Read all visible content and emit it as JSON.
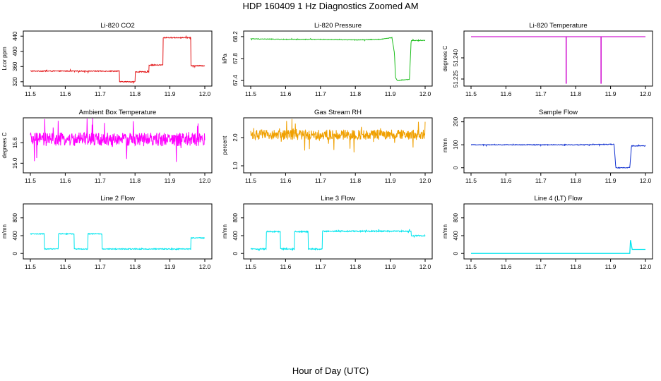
{
  "figure": {
    "title": "HDP  160409  1 Hz Diagnostics Zoomed AM",
    "xlabel": "Hour of Day (UTC)"
  },
  "chart_data": [
    {
      "type": "line",
      "title": "Li-820 CO2",
      "ylabel": "Lcor ppm",
      "color": "#e31a1c",
      "xlim": [
        11.5,
        12.0
      ],
      "ylim": [
        316,
        446
      ],
      "xticks": [
        11.5,
        11.6,
        11.7,
        11.8,
        11.9,
        12.0
      ],
      "xtick_labels": [
        "11.5",
        "11.6",
        "11.7",
        "11.8",
        "11.9",
        "12.0"
      ],
      "yticks": [
        320,
        360,
        400,
        440
      ],
      "ytick_labels": [
        "320",
        "360",
        "400",
        "440"
      ],
      "x": [
        11.5,
        11.755,
        11.755,
        11.8,
        11.8,
        11.84,
        11.84,
        11.88,
        11.88,
        11.96,
        11.96,
        12.0
      ],
      "y": [
        348,
        348,
        320,
        320,
        346,
        346,
        364,
        364,
        436,
        436,
        362,
        362
      ],
      "noise": 1.2
    },
    {
      "type": "line",
      "title": "Li-820 Pressure",
      "ylabel": "kPa",
      "color": "#1fbf1f",
      "xlim": [
        11.5,
        12.0
      ],
      "ylim": [
        67.35,
        68.25
      ],
      "xticks": [
        11.5,
        11.6,
        11.7,
        11.8,
        11.9,
        12.0
      ],
      "xtick_labels": [
        "11.5",
        "11.6",
        "11.7",
        "11.8",
        "11.9",
        "12.0"
      ],
      "yticks": [
        67.4,
        67.8,
        68.2
      ],
      "ytick_labels": [
        "67.4",
        "67.8",
        "68.2"
      ],
      "x": [
        11.5,
        11.6,
        11.7,
        11.8,
        11.87,
        11.905,
        11.912,
        11.915,
        11.92,
        11.955,
        11.96,
        11.965,
        12.0
      ],
      "y": [
        68.16,
        68.15,
        68.15,
        68.14,
        68.15,
        68.18,
        67.9,
        67.45,
        67.4,
        67.42,
        68.13,
        68.13,
        68.13
      ],
      "noise": 0.005
    },
    {
      "type": "line",
      "title": "Li-820 Temperature",
      "ylabel": "degrees C",
      "color": "#d21ad2",
      "xlim": [
        11.5,
        12.0
      ],
      "ylim": [
        51.222,
        51.257
      ],
      "xticks": [
        11.5,
        11.6,
        11.7,
        11.8,
        11.9,
        12.0
      ],
      "xtick_labels": [
        "11.5",
        "11.6",
        "11.7",
        "11.8",
        "11.9",
        "12.0"
      ],
      "yticks": [
        51.225,
        51.24
      ],
      "ytick_labels": [
        "51.225",
        "51.240"
      ],
      "x": [
        11.5,
        11.7725,
        11.7725,
        11.773,
        11.773,
        11.8725,
        11.8725,
        11.873,
        11.873,
        12.0
      ],
      "y": [
        51.255,
        51.255,
        51.222,
        51.222,
        51.255,
        51.255,
        51.222,
        51.222,
        51.255,
        51.255
      ],
      "noise": 0
    },
    {
      "type": "line",
      "title": "Ambient Box Temperature",
      "ylabel": "degrees C",
      "color": "#ff00ff",
      "xlim": [
        11.5,
        12.0
      ],
      "ylim": [
        14.8,
        16.25
      ],
      "xticks": [
        11.5,
        11.6,
        11.7,
        11.8,
        11.9,
        12.0
      ],
      "xtick_labels": [
        "11.5",
        "11.6",
        "11.7",
        "11.8",
        "11.9",
        "12.0"
      ],
      "yticks": [
        15.0,
        15.6
      ],
      "ytick_labels": [
        "15.0",
        "15.6"
      ],
      "x": [
        11.5,
        12.0
      ],
      "y": [
        15.7,
        15.7
      ],
      "noise": 0.2
    },
    {
      "type": "line",
      "title": "Gas Stream RH",
      "ylabel": "percent",
      "color": "#f0a000",
      "xlim": [
        11.5,
        12.0
      ],
      "ylim": [
        0.85,
        2.6
      ],
      "xticks": [
        11.5,
        11.6,
        11.7,
        11.8,
        11.9,
        12.0
      ],
      "xtick_labels": [
        "11.5",
        "11.6",
        "11.7",
        "11.8",
        "11.9",
        "12.0"
      ],
      "yticks": [
        1.0,
        2.0
      ],
      "ytick_labels": [
        "1.0",
        "2.0"
      ],
      "x": [
        11.5,
        12.0
      ],
      "y": [
        2.1,
        2.1
      ],
      "noise": 0.18
    },
    {
      "type": "line",
      "title": "Sample Flow",
      "ylabel": "m/mn",
      "color": "#1030d0",
      "xlim": [
        11.5,
        12.0
      ],
      "ylim": [
        -10,
        205
      ],
      "xticks": [
        11.5,
        11.6,
        11.7,
        11.8,
        11.9,
        12.0
      ],
      "xtick_labels": [
        "11.5",
        "11.6",
        "11.7",
        "11.8",
        "11.9",
        "12.0"
      ],
      "yticks": [
        0,
        100,
        200
      ],
      "ytick_labels": [
        "0",
        "100",
        "200"
      ],
      "x": [
        11.5,
        11.8,
        11.91,
        11.915,
        11.955,
        11.96,
        12.0
      ],
      "y": [
        100,
        100,
        102,
        0,
        0,
        95,
        95
      ],
      "noise": 1.5
    },
    {
      "type": "line",
      "title": "Line 2 Flow",
      "ylabel": "m/mn",
      "color": "#00e5ee",
      "xlim": [
        11.5,
        12.0
      ],
      "ylim": [
        -60,
        1050
      ],
      "xticks": [
        11.5,
        11.6,
        11.7,
        11.8,
        11.9,
        12.0
      ],
      "xtick_labels": [
        "11.5",
        "11.6",
        "11.7",
        "11.8",
        "11.9",
        "12.0"
      ],
      "yticks": [
        0,
        400,
        800
      ],
      "ytick_labels": [
        "0",
        "400",
        "800"
      ],
      "x": [
        11.5,
        11.54,
        11.54,
        11.58,
        11.58,
        11.625,
        11.625,
        11.665,
        11.665,
        11.705,
        11.705,
        11.96,
        11.96,
        12.0
      ],
      "y": [
        440,
        440,
        100,
        100,
        440,
        440,
        100,
        100,
        440,
        440,
        100,
        100,
        350,
        350
      ],
      "noise": 10
    },
    {
      "type": "line",
      "title": "Line 3 Flow",
      "ylabel": "m/mn",
      "color": "#00e5ee",
      "xlim": [
        11.5,
        12.0
      ],
      "ylim": [
        -60,
        1050
      ],
      "xticks": [
        11.5,
        11.6,
        11.7,
        11.8,
        11.9,
        12.0
      ],
      "xtick_labels": [
        "11.5",
        "11.6",
        "11.7",
        "11.8",
        "11.9",
        "12.0"
      ],
      "yticks": [
        0,
        400,
        800
      ],
      "ytick_labels": [
        "0",
        "400",
        "800"
      ],
      "x": [
        11.5,
        11.545,
        11.545,
        11.585,
        11.585,
        11.625,
        11.625,
        11.665,
        11.665,
        11.705,
        11.705,
        11.96,
        11.96,
        12.0
      ],
      "y": [
        100,
        100,
        490,
        490,
        100,
        100,
        490,
        490,
        100,
        100,
        500,
        500,
        400,
        400
      ],
      "noise": 14
    },
    {
      "type": "line",
      "title": "Line 4 (LT) Flow",
      "ylabel": "m/mn",
      "color": "#00e5ee",
      "xlim": [
        11.5,
        12.0
      ],
      "ylim": [
        -60,
        1050
      ],
      "xticks": [
        11.5,
        11.6,
        11.7,
        11.8,
        11.9,
        12.0
      ],
      "xtick_labels": [
        "11.5",
        "11.6",
        "11.7",
        "11.8",
        "11.9",
        "12.0"
      ],
      "yticks": [
        0,
        400,
        800
      ],
      "ytick_labels": [
        "0",
        "400",
        "800"
      ],
      "x": [
        11.5,
        11.955,
        11.957,
        11.962,
        11.965,
        12.0
      ],
      "y": [
        0,
        0,
        300,
        90,
        90,
        90
      ],
      "noise": 0
    }
  ]
}
